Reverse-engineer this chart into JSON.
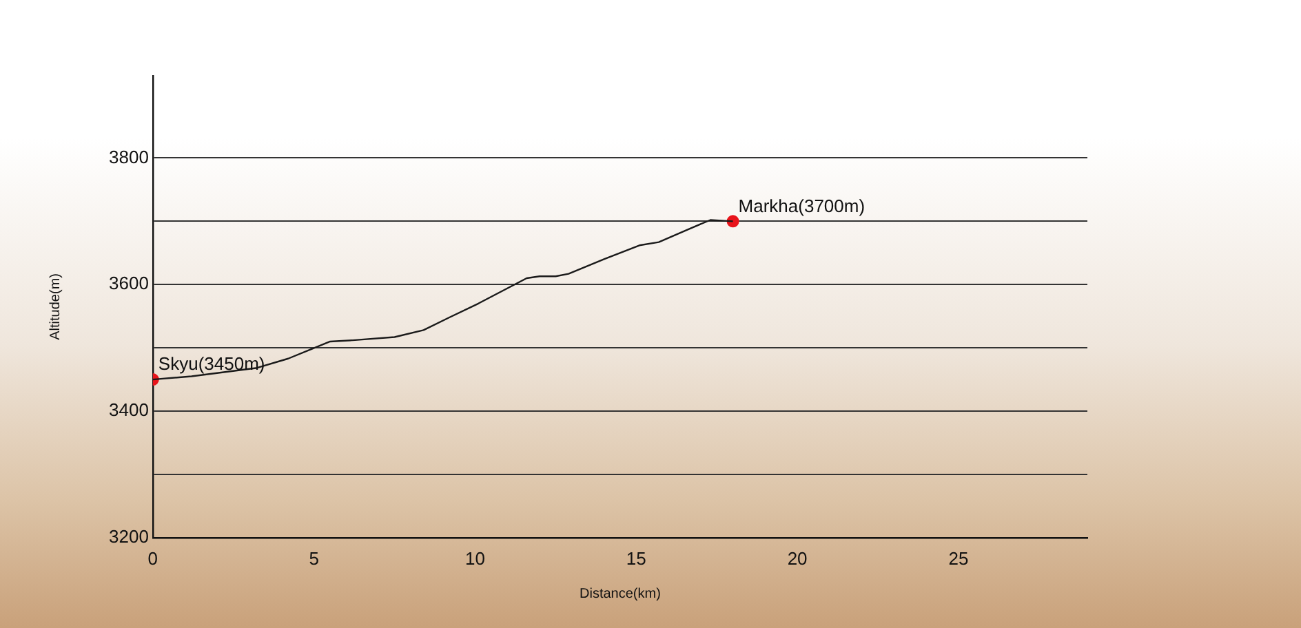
{
  "chart_data": {
    "type": "line",
    "xlabel": "Distance(km)",
    "ylabel": "Altitude(m)",
    "xlim": [
      0,
      29
    ],
    "xticks": [
      0,
      5,
      10,
      15,
      20,
      25
    ],
    "ylim": [
      3200,
      3930
    ],
    "yticks": [
      3200,
      {
        "value": 3300,
        "label": null
      },
      3400,
      {
        "value": 3500,
        "label": null
      },
      3600,
      {
        "value": 3700,
        "label": null
      },
      3800
    ],
    "grid": "y",
    "legend": false,
    "series": [
      {
        "type": "line",
        "color": "#1a1a1a",
        "marker": "none",
        "x": [
          0,
          1.2,
          3.2,
          4.2,
          5.5,
          6.2,
          7.5,
          8.4,
          9.2,
          10.1,
          11.6,
          12.0,
          12.5,
          12.9,
          14.0,
          15.1,
          15.7,
          16.6,
          17.3,
          18
        ],
        "values": [
          3450,
          3455,
          3468,
          3483,
          3510,
          3512,
          3517,
          3528,
          3548,
          3570,
          3610,
          3613,
          3613,
          3617,
          3640,
          3662,
          3667,
          3687,
          3702,
          3700
        ]
      },
      {
        "type": "scatter",
        "color": "#e8141b",
        "marker": "circle",
        "x": [
          0,
          18
        ],
        "values": [
          3450,
          3700
        ]
      }
    ],
    "annotations": [
      {
        "text": "Skyu(3450m)",
        "x": 0,
        "y": 3450
      },
      {
        "text": "Markha(3700m)",
        "x": 18,
        "y": 3700
      }
    ]
  }
}
